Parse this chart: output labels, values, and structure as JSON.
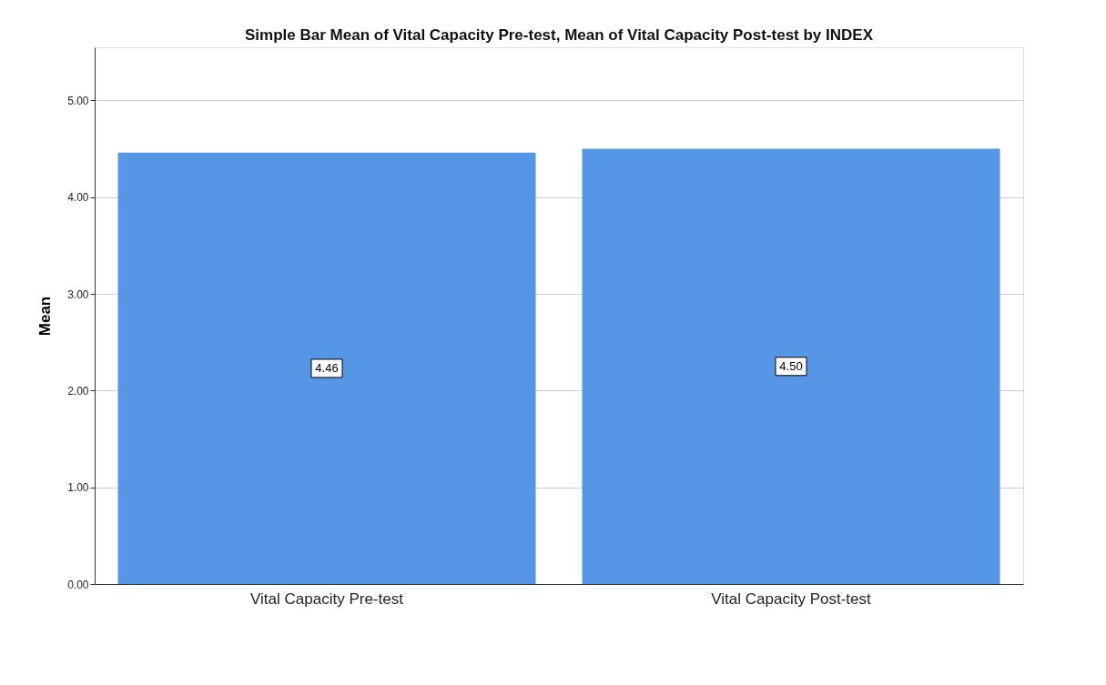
{
  "chart_data": {
    "type": "bar",
    "title": "Simple Bar Mean of Vital Capacity Pre-test, Mean of Vital Capacity Post-test by INDEX",
    "ylabel": "Mean",
    "categories": [
      "Vital Capacity Pre-test",
      "Vital Capacity Post-test"
    ],
    "values": [
      4.46,
      4.5
    ],
    "value_labels": [
      "4.46",
      "4.50"
    ],
    "color": "#5596e6",
    "ylim": [
      0,
      5.55
    ],
    "yticks": [
      {
        "value": 0,
        "label": "0.00"
      },
      {
        "value": 1,
        "label": "1.00"
      },
      {
        "value": 2,
        "label": "2.00"
      },
      {
        "value": 3,
        "label": "3.00"
      },
      {
        "value": 4,
        "label": "4.00"
      },
      {
        "value": 5,
        "label": "5.00"
      }
    ],
    "grid": "y"
  }
}
